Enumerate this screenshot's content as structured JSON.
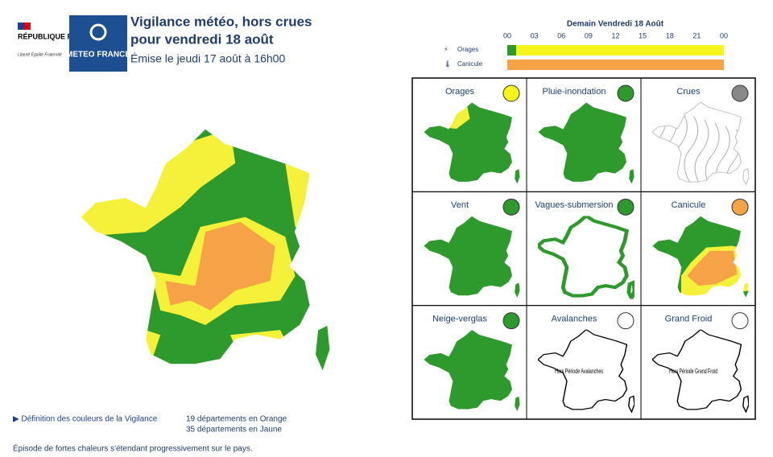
{
  "header": {
    "republic": "RÉPUBLIQUE FRANÇAISE",
    "motto": "Liberté Égalité Fraternité",
    "logo": "METEO FRANCE",
    "title_line1": "Vigilance météo, hors crues",
    "title_line2": "pour vendredi 18 août",
    "issued": "Émise le jeudi 17 août à 16h00"
  },
  "timeline": {
    "title": "Demain Vendredi 18 Août",
    "hours": [
      "00",
      "03",
      "06",
      "09",
      "12",
      "15",
      "18",
      "21",
      "00"
    ],
    "rows": [
      "Orages",
      "Canicule"
    ]
  },
  "panels": [
    {
      "title": "Orages"
    },
    {
      "title": "Pluie-inondation"
    },
    {
      "title": "Crues"
    },
    {
      "title": "Vent"
    },
    {
      "title": "Vagues-submersion"
    },
    {
      "title": "Canicule"
    },
    {
      "title": "Neige-verglas"
    },
    {
      "title": "Avalanches",
      "note": "Hors Période Avalanches"
    },
    {
      "title": "Grand Froid",
      "note": "Hors Période Grand Froid"
    }
  ],
  "footer": {
    "link": "▶ Définition des couleurs de la Vigilance",
    "orange_count": "19 départements en Orange",
    "yellow_count": "35 départements en Jaune",
    "description": "Épisode de fortes chaleurs s'étendant progressivement sur le pays."
  }
}
